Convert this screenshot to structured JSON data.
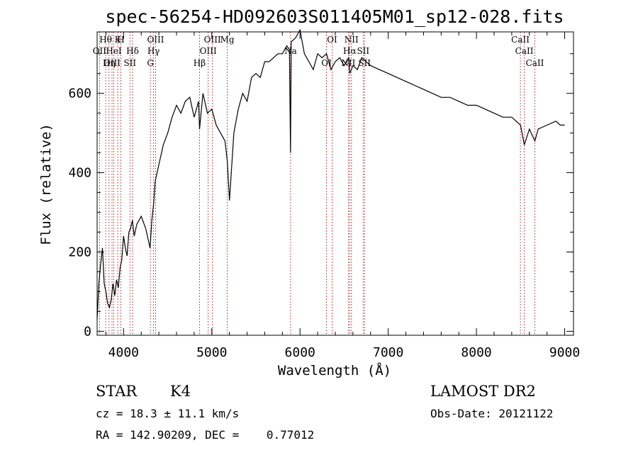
{
  "chart_data": {
    "type": "line",
    "title": "spec-56254-HD092603S011405M01_sp12-028.fits",
    "xlabel": "Wavelength (Å)",
    "ylabel": "Flux (relative)",
    "xlim": [
      3700,
      9100
    ],
    "ylim": [
      -10,
      755
    ],
    "x_ticks": [
      4000,
      5000,
      6000,
      7000,
      8000,
      9000
    ],
    "y_ticks": [
      0,
      200,
      400,
      600
    ],
    "grid": false,
    "series": [
      {
        "x": [
          3700,
          3720,
          3740,
          3760,
          3780,
          3800,
          3820,
          3840,
          3860,
          3880,
          3900,
          3920,
          3940,
          3960,
          3980,
          4000,
          4020,
          4040,
          4060,
          4080,
          4100,
          4120,
          4150,
          4200,
          4250,
          4300,
          4320,
          4340,
          4360,
          4380,
          4400,
          4450,
          4500,
          4550,
          4600,
          4650,
          4700,
          4750,
          4800,
          4850,
          4861,
          4900,
          4950,
          5000,
          5050,
          5100,
          5150,
          5175,
          5200,
          5250,
          5300,
          5350,
          5400,
          5450,
          5500,
          5550,
          5600,
          5650,
          5700,
          5750,
          5800,
          5850,
          5880,
          5892,
          5900,
          5950,
          6000,
          6050,
          6100,
          6150,
          6200,
          6250,
          6300,
          6350,
          6400,
          6450,
          6500,
          6550,
          6563,
          6600,
          6650,
          6700,
          6800,
          6900,
          7000,
          7100,
          7200,
          7300,
          7400,
          7500,
          7600,
          7700,
          7800,
          7900,
          8000,
          8100,
          8200,
          8300,
          8400,
          8500,
          8542,
          8600,
          8662,
          8700,
          8800,
          8900,
          8950,
          9000
        ],
        "values": [
          30,
          120,
          170,
          210,
          120,
          100,
          70,
          60,
          80,
          120,
          90,
          130,
          110,
          160,
          180,
          240,
          210,
          190,
          250,
          260,
          280,
          240,
          270,
          290,
          260,
          210,
          280,
          320,
          380,
          400,
          420,
          470,
          500,
          540,
          570,
          550,
          580,
          590,
          540,
          580,
          510,
          600,
          550,
          560,
          520,
          500,
          480,
          430,
          330,
          500,
          560,
          600,
          580,
          640,
          650,
          640,
          680,
          680,
          690,
          700,
          700,
          720,
          710,
          450,
          730,
          740,
          760,
          700,
          680,
          660,
          700,
          690,
          700,
          660,
          680,
          690,
          670,
          690,
          650,
          670,
          660,
          690,
          670,
          660,
          650,
          640,
          630,
          620,
          610,
          600,
          590,
          590,
          580,
          570,
          570,
          560,
          550,
          540,
          540,
          520,
          470,
          510,
          480,
          510,
          520,
          530,
          520,
          520
        ]
      }
    ],
    "lines": [
      {
        "name": "Hθ",
        "x": 3797
      },
      {
        "name": "OII",
        "x": 3727
      },
      {
        "name": "OIII",
        "x": 3869
      },
      {
        "name": "K",
        "x": 3934
      },
      {
        "name": "HeI",
        "x": 3889
      },
      {
        "name": "Hη",
        "x": 3835
      },
      {
        "name": "H",
        "x": 3969
      },
      {
        "name": "Hδ",
        "x": 4102
      },
      {
        "name": "SII",
        "x": 4072
      },
      {
        "name": "OIII",
        "x": 4363
      },
      {
        "name": "Hγ",
        "x": 4340
      },
      {
        "name": "G",
        "x": 4304
      },
      {
        "name": "OIII",
        "x": 5007
      },
      {
        "name": "OIII",
        "x": 4959
      },
      {
        "name": "Hβ",
        "x": 4861
      },
      {
        "name": "Mg",
        "x": 5175
      },
      {
        "name": "Na",
        "x": 5893
      },
      {
        "name": "OI",
        "x": 6300
      },
      {
        "name": "OI",
        "x": 6364
      },
      {
        "name": "Hα",
        "x": 6563
      },
      {
        "name": "NII",
        "x": 6548
      },
      {
        "name": "NII",
        "x": 6583
      },
      {
        "name": "SII",
        "x": 6716
      },
      {
        "name": "SII",
        "x": 6731
      },
      {
        "name": "CaII",
        "x": 8498
      },
      {
        "name": "CaII",
        "x": 8542
      },
      {
        "name": "CaII",
        "x": 8662
      }
    ]
  },
  "info": {
    "object_type": "STAR",
    "subclass": "K4",
    "survey": "LAMOST DR2",
    "cz": "cz = 18.3 ± 11.1 km/s",
    "obs_date": "Obs-Date: 20121122",
    "coords": "RA = 142.90209, DEC =    0.77012"
  }
}
